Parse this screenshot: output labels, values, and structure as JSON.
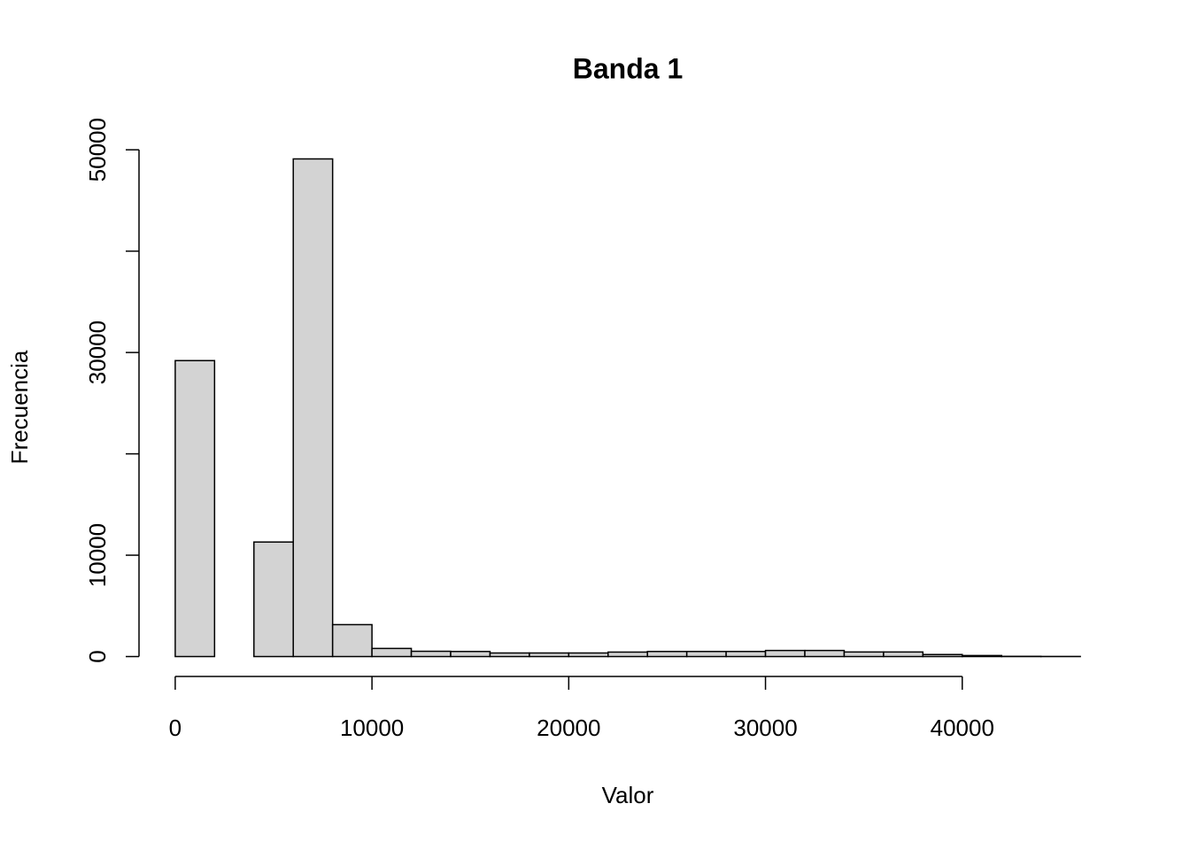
{
  "chart_data": {
    "type": "histogram",
    "title": "Banda 1",
    "x_label": "Valor",
    "y_label": "Frecuencia",
    "bins": [
      0,
      2000,
      4000,
      6000,
      8000,
      10000,
      12000,
      14000,
      16000,
      18000,
      20000,
      22000,
      24000,
      26000,
      28000,
      30000,
      32000,
      34000,
      36000,
      38000,
      40000,
      42000,
      44000,
      46000
    ],
    "values": [
      29200,
      0,
      11300,
      49100,
      3150,
      800,
      520,
      500,
      350,
      350,
      350,
      440,
      500,
      500,
      500,
      600,
      600,
      450,
      450,
      200,
      100,
      20,
      10
    ],
    "color": "#d3d3d3",
    "edge_color": "#000000",
    "xlim": [
      -1840,
      47840
    ],
    "xticks": [
      0,
      10000,
      20000,
      30000,
      40000
    ],
    "ylim": [
      -1964,
      51064
    ],
    "yticks": [
      0,
      10000,
      {
        "value": 20000,
        "label": null
      },
      30000,
      {
        "value": 40000,
        "label": null
      },
      50000
    ],
    "grid": false
  }
}
